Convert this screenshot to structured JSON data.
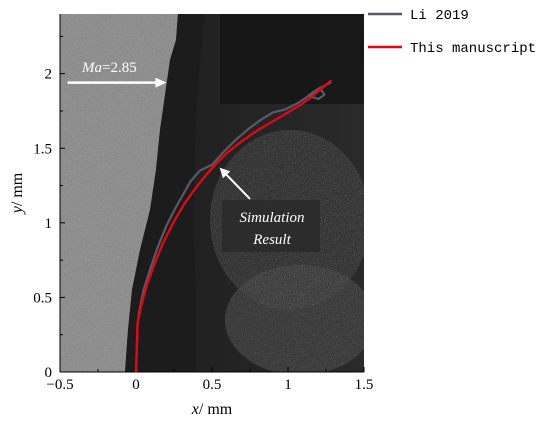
{
  "chart_data": {
    "type": "line",
    "xlabel": "x/ mm",
    "ylabel": "y/ mm",
    "xlim": [
      -0.5,
      1.5
    ],
    "ylim": [
      0,
      2.4
    ],
    "xticks": [
      -0.5,
      0,
      0.5,
      1,
      1.5
    ],
    "yticks": [
      0,
      0.5,
      1,
      1.5,
      2
    ],
    "xtick_labels": [
      "−0.5",
      "0",
      "0.5",
      "1",
      "1.5"
    ],
    "ytick_labels": [
      "0",
      "0.5",
      "1",
      "1.5",
      "2"
    ],
    "grid": false,
    "legend_position": "outside-top-right",
    "background": "grayscale schlieren photograph",
    "series": [
      {
        "name": "Li 2019",
        "color": "#555c66",
        "x": [
          0.0,
          0.005,
          0.01,
          0.02,
          0.05,
          0.09,
          0.14,
          0.2,
          0.26,
          0.31,
          0.36,
          0.42,
          0.5,
          0.58,
          0.66,
          0.74,
          0.82,
          0.9,
          0.98,
          1.06,
          1.12,
          1.17,
          1.22,
          1.24,
          1.2,
          1.14,
          1.2,
          1.28
        ],
        "y": [
          0.0,
          0.15,
          0.32,
          0.4,
          0.55,
          0.68,
          0.83,
          0.98,
          1.1,
          1.19,
          1.28,
          1.35,
          1.39,
          1.48,
          1.56,
          1.63,
          1.69,
          1.74,
          1.76,
          1.8,
          1.84,
          1.88,
          1.89,
          1.86,
          1.83,
          1.85,
          1.9,
          1.94
        ]
      },
      {
        "name": "This manuscript",
        "color": "#e30613",
        "x": [
          0.0,
          0.005,
          0.01,
          0.03,
          0.07,
          0.12,
          0.18,
          0.25,
          0.32,
          0.39,
          0.46,
          0.53,
          0.6,
          0.7,
          0.8,
          0.9,
          1.0,
          1.08,
          1.15,
          1.22,
          1.28
        ],
        "y": [
          0.0,
          0.15,
          0.32,
          0.43,
          0.58,
          0.72,
          0.87,
          1.01,
          1.13,
          1.23,
          1.32,
          1.4,
          1.47,
          1.55,
          1.62,
          1.68,
          1.74,
          1.79,
          1.84,
          1.9,
          1.95
        ]
      }
    ],
    "annotations": [
      {
        "name": "ma-label",
        "text": "Ma=2.85",
        "arrow_from": [
          -0.45,
          1.94
        ],
        "arrow_to": [
          0.2,
          1.94
        ]
      },
      {
        "name": "simulation-result",
        "lines": [
          "Simulation",
          "Result"
        ],
        "arrow_from": [
          0.75,
          1.16
        ],
        "arrow_to": [
          0.55,
          1.37
        ]
      }
    ]
  }
}
